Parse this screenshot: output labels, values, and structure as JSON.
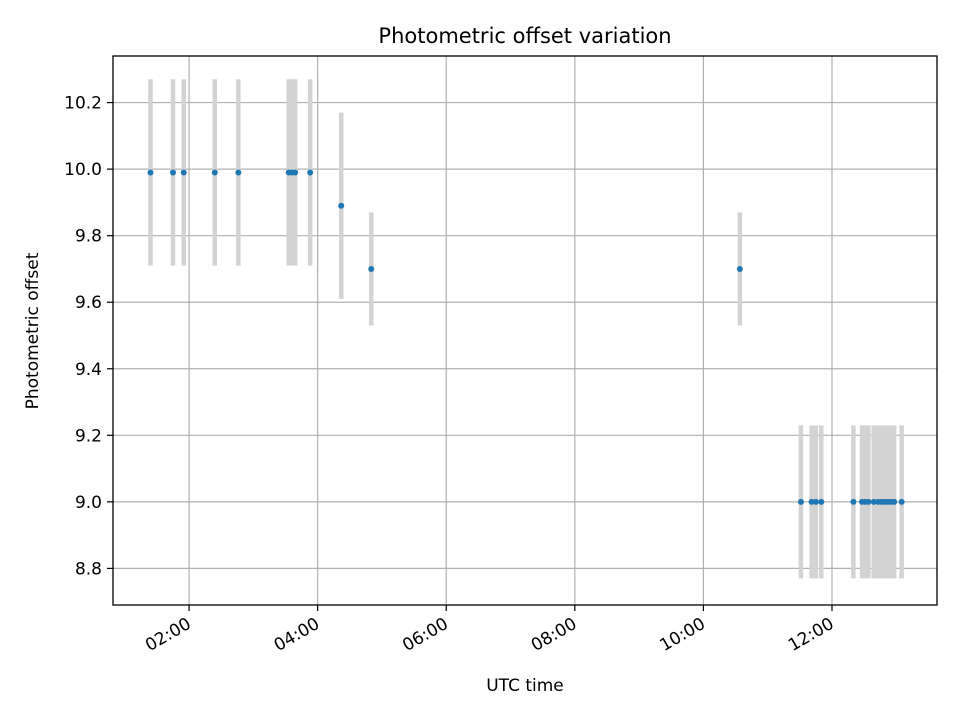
{
  "chart_data": {
    "type": "scatter",
    "title": "Photometric offset variation",
    "xlabel": "UTC time",
    "ylabel": "Photometric offset",
    "x_tick_labels": [
      "02:00",
      "04:00",
      "06:00",
      "08:00",
      "10:00",
      "12:00"
    ],
    "x_tick_values": [
      "02:00",
      "04:00",
      "06:00",
      "08:00",
      "10:00",
      "12:00"
    ],
    "xlim": [
      "00:49",
      "13:38"
    ],
    "y_tick_labels": [
      "8.8",
      "9.0",
      "9.2",
      "9.4",
      "9.6",
      "9.8",
      "10.0",
      "10.2"
    ],
    "y_tick_values": [
      8.8,
      9.0,
      9.2,
      9.4,
      9.6,
      9.8,
      10.0,
      10.2
    ],
    "ylim": [
      8.69,
      10.34
    ],
    "grid": true,
    "marker_color": "#1f77b4",
    "errorbar_color": "#d3d3d3",
    "points": [
      {
        "t": "01:24",
        "y": 9.99,
        "err": 0.28
      },
      {
        "t": "01:45",
        "y": 9.99,
        "err": 0.28
      },
      {
        "t": "01:55",
        "y": 9.99,
        "err": 0.28
      },
      {
        "t": "02:24",
        "y": 9.99,
        "err": 0.28
      },
      {
        "t": "02:46",
        "y": 9.99,
        "err": 0.28
      },
      {
        "t": "03:33",
        "y": 9.99,
        "err": 0.28
      },
      {
        "t": "03:36",
        "y": 9.99,
        "err": 0.28
      },
      {
        "t": "03:39",
        "y": 9.99,
        "err": 0.28
      },
      {
        "t": "03:53",
        "y": 9.99,
        "err": 0.28
      },
      {
        "t": "04:22",
        "y": 9.89,
        "err": 0.28
      },
      {
        "t": "04:50",
        "y": 9.7,
        "err": 0.17
      },
      {
        "t": "10:34",
        "y": 9.7,
        "err": 0.17
      },
      {
        "t": "11:31",
        "y": 9.0,
        "err": 0.23
      },
      {
        "t": "11:41",
        "y": 9.0,
        "err": 0.23
      },
      {
        "t": "11:45",
        "y": 9.0,
        "err": 0.23
      },
      {
        "t": "11:50",
        "y": 9.0,
        "err": 0.23
      },
      {
        "t": "12:20",
        "y": 9.0,
        "err": 0.23
      },
      {
        "t": "12:28",
        "y": 9.0,
        "err": 0.23
      },
      {
        "t": "12:31",
        "y": 9.0,
        "err": 0.23
      },
      {
        "t": "12:34",
        "y": 9.0,
        "err": 0.23
      },
      {
        "t": "12:39",
        "y": 9.0,
        "err": 0.23
      },
      {
        "t": "12:43",
        "y": 9.0,
        "err": 0.23
      },
      {
        "t": "12:46",
        "y": 9.0,
        "err": 0.23
      },
      {
        "t": "12:49",
        "y": 9.0,
        "err": 0.23
      },
      {
        "t": "12:52",
        "y": 9.0,
        "err": 0.23
      },
      {
        "t": "12:55",
        "y": 9.0,
        "err": 0.23
      },
      {
        "t": "12:58",
        "y": 9.0,
        "err": 0.23
      },
      {
        "t": "13:05",
        "y": 9.0,
        "err": 0.23
      }
    ]
  }
}
